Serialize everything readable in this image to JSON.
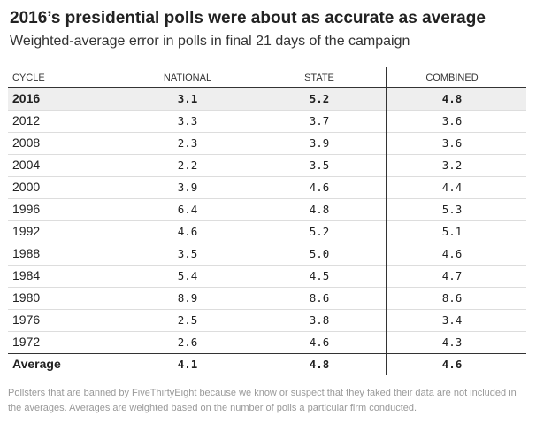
{
  "header": {
    "title": "2016’s presidential polls were about as accurate as average",
    "subtitle": "Weighted-average error in polls in final 21 days of the campaign"
  },
  "table": {
    "columns": [
      "CYCLE",
      "NATIONAL",
      "STATE",
      "COMBINED"
    ],
    "rows": [
      [
        "2016",
        "3.1",
        "5.2",
        "4.8"
      ],
      [
        "2012",
        "3.3",
        "3.7",
        "3.6"
      ],
      [
        "2008",
        "2.3",
        "3.9",
        "3.6"
      ],
      [
        "2004",
        "2.2",
        "3.5",
        "3.2"
      ],
      [
        "2000",
        "3.9",
        "4.6",
        "4.4"
      ],
      [
        "1996",
        "6.4",
        "4.8",
        "5.3"
      ],
      [
        "1992",
        "4.6",
        "5.2",
        "5.1"
      ],
      [
        "1988",
        "3.5",
        "5.0",
        "4.6"
      ],
      [
        "1984",
        "5.4",
        "4.5",
        "4.7"
      ],
      [
        "1980",
        "8.9",
        "8.6",
        "8.6"
      ],
      [
        "1976",
        "2.5",
        "3.8",
        "3.4"
      ],
      [
        "1972",
        "2.6",
        "4.6",
        "4.3"
      ]
    ],
    "footer": [
      "Average",
      "4.1",
      "4.8",
      "4.6"
    ]
  },
  "note": "Pollsters that are banned by FiveThirtyEight because we know or suspect that they faked their data are not included in the averages. Averages are weighted based on the number of polls a particular firm conducted."
}
